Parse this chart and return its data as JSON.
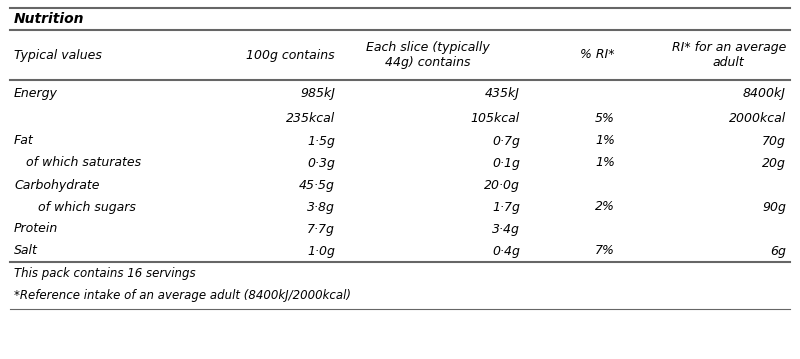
{
  "title": "Nutrition",
  "header_row": [
    "Typical values",
    "100g contains",
    "Each slice (typically\n44g) contains",
    "% RI*",
    "RI* for an average\nadult"
  ],
  "rows": [
    [
      "Energy",
      "985kJ",
      "435kJ",
      "",
      "8400kJ"
    ],
    [
      "",
      "235kcal",
      "105kcal",
      "5%",
      "2000kcal"
    ],
    [
      "Fat",
      "1·5g",
      "0·7g",
      "1%",
      "70g"
    ],
    [
      "   of which saturates",
      "0·3g",
      "0·1g",
      "1%",
      "20g"
    ],
    [
      "Carbohydrate",
      "45·5g",
      "20·0g",
      "",
      ""
    ],
    [
      "      of which sugars",
      "3·8g",
      "1·7g",
      "2%",
      "90g"
    ],
    [
      "Protein",
      "7·7g",
      "3·4g",
      "",
      ""
    ],
    [
      "Salt",
      "1·0g",
      "0·4g",
      "7%",
      "6g"
    ]
  ],
  "footer_lines": [
    "This pack contains 16 servings",
    "*Reference intake of an average adult (8400kJ/2000kcal)"
  ],
  "bg_color": "#ffffff",
  "text_color": "#000000",
  "border_color": "#666666",
  "font_size": 9.0,
  "title_font_size": 10.0,
  "footer_font_size": 8.5,
  "lw_thick": 1.5,
  "lw_thin": 0.8
}
